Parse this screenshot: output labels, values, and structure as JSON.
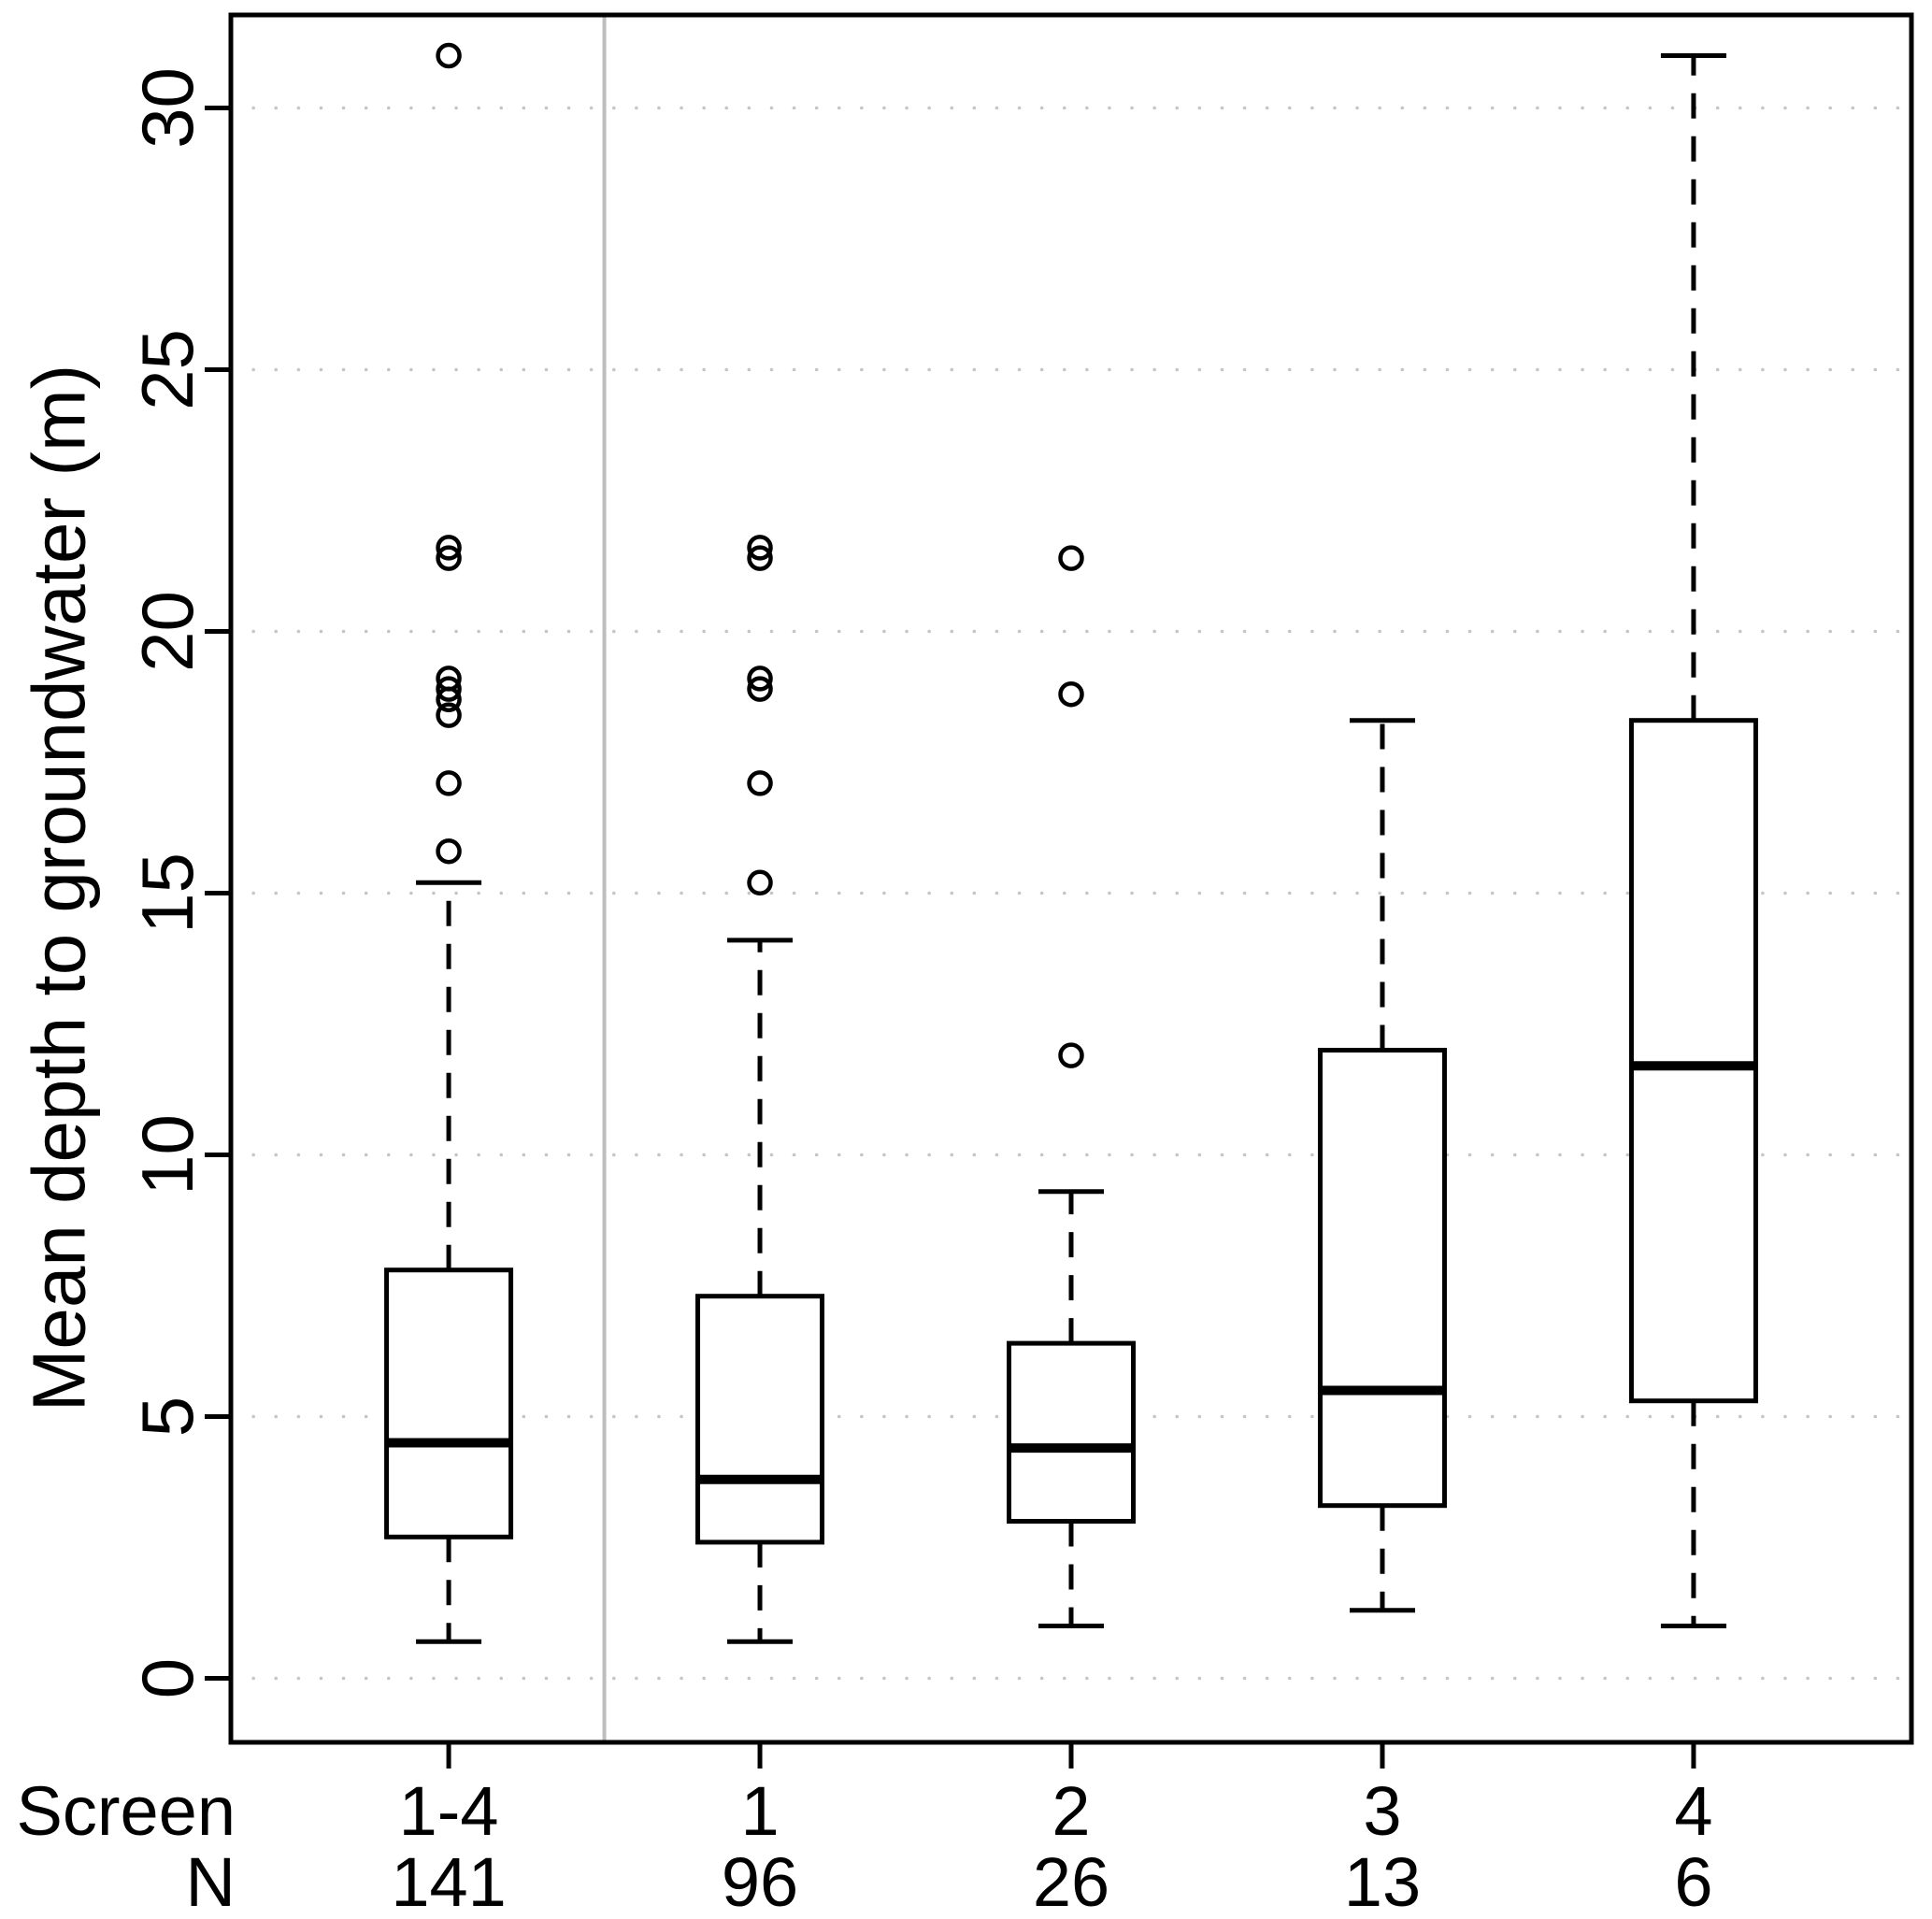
{
  "chart_data": {
    "type": "boxplot",
    "title": "",
    "ylabel": "Mean depth to groundwater (m)",
    "xlabel": "",
    "x_header": {
      "screen_label": "Screen",
      "n_label": "N"
    },
    "categories": [
      "1-4",
      "1",
      "2",
      "3",
      "4"
    ],
    "y_ticks": [
      0,
      5,
      10,
      15,
      20,
      25,
      30
    ],
    "y_axis_range_shown": [
      -1.2,
      31.8
    ],
    "grid": "horizontal-dotted",
    "legend": "none",
    "separator_after_category_index": 0,
    "series": [
      {
        "screen": "1-4",
        "n": 141,
        "whisker_low": 0.7,
        "q1": 2.7,
        "median": 4.5,
        "q3": 7.8,
        "whisker_high": 15.2,
        "outliers": [
          15.8,
          17.1,
          18.4,
          18.7,
          18.9,
          19.1,
          21.4,
          21.6,
          31.0
        ]
      },
      {
        "screen": "1",
        "n": 96,
        "whisker_low": 0.7,
        "q1": 2.6,
        "median": 3.8,
        "q3": 7.3,
        "whisker_high": 14.1,
        "outliers": [
          15.2,
          17.1,
          18.9,
          19.1,
          21.4,
          21.6
        ]
      },
      {
        "screen": "2",
        "n": 26,
        "whisker_low": 1.0,
        "q1": 3.0,
        "median": 4.4,
        "q3": 6.4,
        "whisker_high": 9.3,
        "outliers": [
          11.9,
          18.8,
          21.4
        ]
      },
      {
        "screen": "3",
        "n": 13,
        "whisker_low": 1.3,
        "q1": 3.3,
        "median": 5.5,
        "q3": 12.0,
        "whisker_high": 18.3,
        "outliers": []
      },
      {
        "screen": "4",
        "n": 6,
        "whisker_low": 1.0,
        "q1": 5.3,
        "median": 11.7,
        "q3": 18.3,
        "whisker_high": 31.0,
        "outliers": []
      }
    ]
  },
  "colors": {
    "axis": "#000000",
    "text": "#000000",
    "grid_dots": "#c5c5c5",
    "separator": "#bdbdbd",
    "box_fill": "#ffffff"
  }
}
